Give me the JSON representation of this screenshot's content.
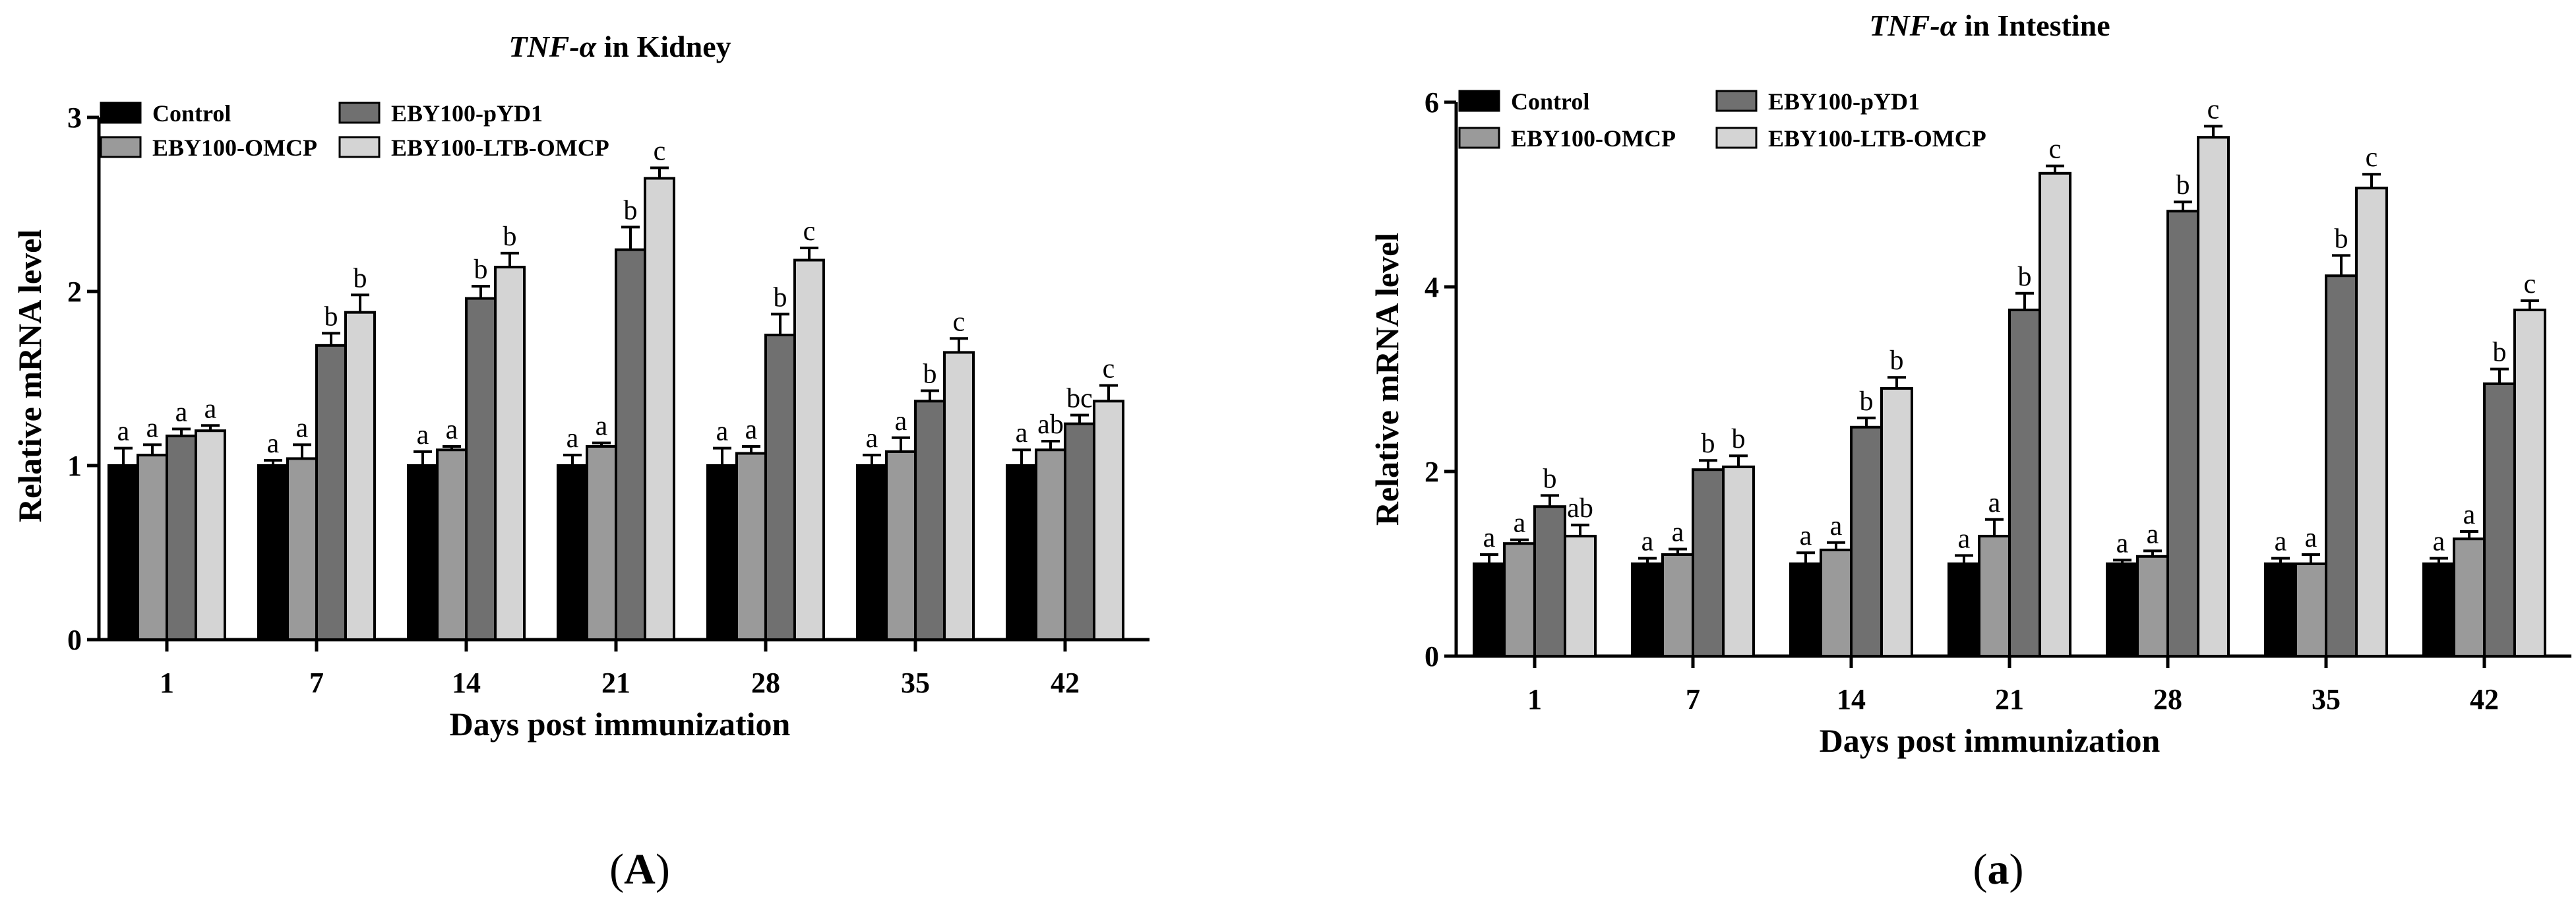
{
  "chart_data": [
    {
      "type": "bar",
      "panel_label": "(A)",
      "title_gene": "TNF-α",
      "title_rest": " in Kidney",
      "xlabel": "Days post immunization",
      "ylabel": "Relative mRNA level",
      "ylim": [
        0,
        3
      ],
      "yticks": [
        "0",
        "1",
        "2",
        "3"
      ],
      "categories": [
        "1",
        "7",
        "14",
        "21",
        "28",
        "35",
        "42"
      ],
      "series": [
        {
          "name": "Control",
          "color": "#000000",
          "values": [
            1.0,
            1.0,
            1.0,
            1.0,
            1.0,
            1.0,
            1.0
          ],
          "errors": [
            0.1,
            0.03,
            0.08,
            0.06,
            0.1,
            0.06,
            0.09
          ],
          "labels": [
            "a",
            "a",
            "a",
            "a",
            "a",
            "a",
            "a"
          ]
        },
        {
          "name": "EBY100-OMCP",
          "color": "#9a9a9a",
          "values": [
            1.06,
            1.04,
            1.09,
            1.11,
            1.07,
            1.08,
            1.09
          ],
          "errors": [
            0.06,
            0.08,
            0.02,
            0.02,
            0.04,
            0.08,
            0.05
          ],
          "labels": [
            "a",
            "a",
            "a",
            "a",
            "a",
            "a",
            "ab"
          ]
        },
        {
          "name": "EBY100-pYD1",
          "color": "#707070",
          "values": [
            1.17,
            1.69,
            1.96,
            2.24,
            1.75,
            1.37,
            1.24
          ],
          "errors": [
            0.04,
            0.07,
            0.07,
            0.13,
            0.12,
            0.06,
            0.05
          ],
          "labels": [
            "a",
            "b",
            "b",
            "b",
            "b",
            "b",
            "bc"
          ]
        },
        {
          "name": "EBY100-LTB-OMCP",
          "color": "#d4d4d4",
          "values": [
            1.2,
            1.88,
            2.14,
            2.65,
            2.18,
            1.65,
            1.37
          ],
          "errors": [
            0.03,
            0.1,
            0.08,
            0.06,
            0.07,
            0.08,
            0.09
          ],
          "labels": [
            "a",
            "b",
            "b",
            "c",
            "c",
            "c",
            "c"
          ]
        }
      ],
      "legend": [
        {
          "name": "Control",
          "color": "#000000"
        },
        {
          "name": "EBY100-pYD1",
          "color": "#707070"
        },
        {
          "name": "EBY100-OMCP",
          "color": "#9a9a9a"
        },
        {
          "name": "EBY100-LTB-OMCP",
          "color": "#d4d4d4"
        }
      ]
    },
    {
      "type": "bar",
      "panel_label": "(a)",
      "title_gene": "TNF-α",
      "title_rest": " in Intestine",
      "xlabel": "Days post immunization",
      "ylabel": "Relative mRNA level",
      "ylim": [
        0,
        6
      ],
      "yticks": [
        "0",
        "2",
        "4",
        "6"
      ],
      "categories": [
        "1",
        "7",
        "14",
        "21",
        "28",
        "35",
        "42"
      ],
      "series": [
        {
          "name": "Control",
          "color": "#000000",
          "values": [
            1.0,
            1.0,
            1.0,
            1.0,
            1.0,
            1.0,
            1.0
          ],
          "errors": [
            0.1,
            0.06,
            0.12,
            0.09,
            0.04,
            0.06,
            0.06
          ],
          "labels": [
            "a",
            "a",
            "a",
            "a",
            "a",
            "a",
            "a"
          ]
        },
        {
          "name": "EBY100-OMCP",
          "color": "#9a9a9a",
          "values": [
            1.22,
            1.1,
            1.15,
            1.3,
            1.08,
            1.0,
            1.27
          ],
          "errors": [
            0.04,
            0.06,
            0.08,
            0.18,
            0.06,
            0.1,
            0.08
          ],
          "labels": [
            "a",
            "a",
            "a",
            "a",
            "a",
            "a",
            "a"
          ]
        },
        {
          "name": "EBY100-pYD1",
          "color": "#707070",
          "values": [
            1.62,
            2.02,
            2.48,
            3.75,
            4.82,
            4.12,
            2.95
          ],
          "errors": [
            0.12,
            0.1,
            0.1,
            0.18,
            0.1,
            0.22,
            0.16
          ],
          "labels": [
            "b",
            "b",
            "b",
            "b",
            "b",
            "b",
            "b"
          ]
        },
        {
          "name": "EBY100-LTB-OMCP",
          "color": "#d4d4d4",
          "values": [
            1.3,
            2.05,
            2.9,
            5.23,
            5.62,
            5.07,
            3.75
          ],
          "errors": [
            0.12,
            0.12,
            0.12,
            0.08,
            0.12,
            0.15,
            0.1
          ],
          "labels": [
            "ab",
            "b",
            "b",
            "c",
            "c",
            "c",
            "c"
          ]
        }
      ],
      "legend": [
        {
          "name": "Control",
          "color": "#000000"
        },
        {
          "name": "EBY100-pYD1",
          "color": "#707070"
        },
        {
          "name": "EBY100-OMCP",
          "color": "#9a9a9a"
        },
        {
          "name": "EBY100-LTB-OMCP",
          "color": "#d4d4d4"
        }
      ]
    }
  ]
}
